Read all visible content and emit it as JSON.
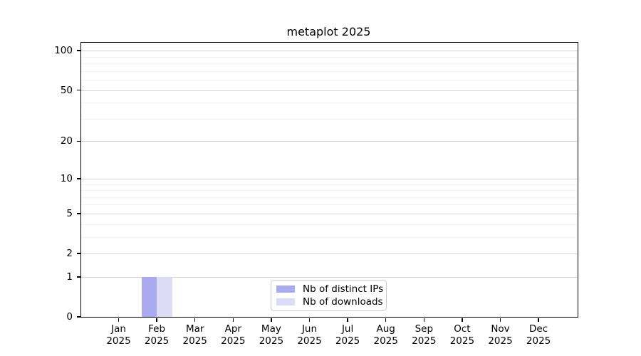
{
  "chart_data": {
    "type": "bar",
    "title": "metaplot 2025",
    "x": {
      "months": [
        "Jan",
        "Feb",
        "Mar",
        "Apr",
        "May",
        "Jun",
        "Jul",
        "Aug",
        "Sep",
        "Oct",
        "Nov",
        "Dec"
      ],
      "year": "2025"
    },
    "y": {
      "scale": "log1p",
      "major_ticks": [
        0,
        1,
        2,
        5,
        10,
        20,
        50,
        100
      ],
      "minor_ticks": [
        3,
        4,
        6,
        7,
        8,
        9,
        30,
        40,
        60,
        70,
        80,
        90
      ],
      "max": 115,
      "grid": true
    },
    "series": [
      {
        "name": "Nb of distinct IPs",
        "color": "#aaaaf0",
        "values": [
          0,
          1,
          0,
          0,
          0,
          0,
          0,
          0,
          0,
          0,
          0,
          0
        ]
      },
      {
        "name": "Nb of downloads",
        "color": "#dcdcf7",
        "values": [
          0,
          1,
          0,
          0,
          0,
          0,
          0,
          0,
          0,
          0,
          0,
          0
        ]
      }
    ],
    "legend": {
      "position": "lower center"
    },
    "colors": {
      "spine": "#000000",
      "grid_major": "#d2d2d2",
      "grid_minor": "#f0f0f0",
      "text": "#000000",
      "legend_border": "#cccccc"
    }
  }
}
